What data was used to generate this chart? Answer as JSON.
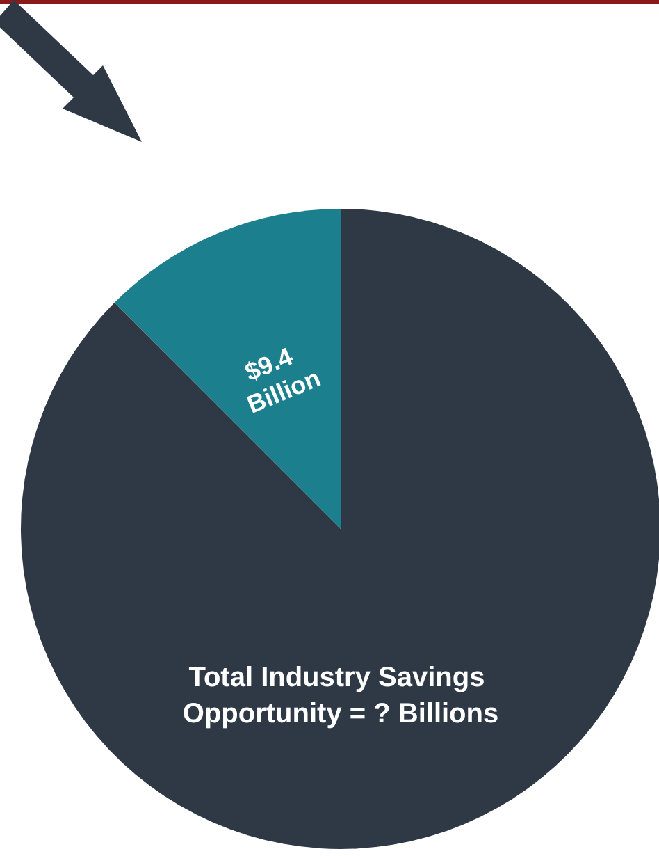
{
  "chart_data": {
    "type": "pie",
    "categories": [
      "$9.4 Billion",
      "Total Industry Savings Opportunity = ? Billions"
    ],
    "values": [
      12.5,
      87.5
    ],
    "colors": [
      "#1b7f8d",
      "#2f3946"
    ]
  }
}
